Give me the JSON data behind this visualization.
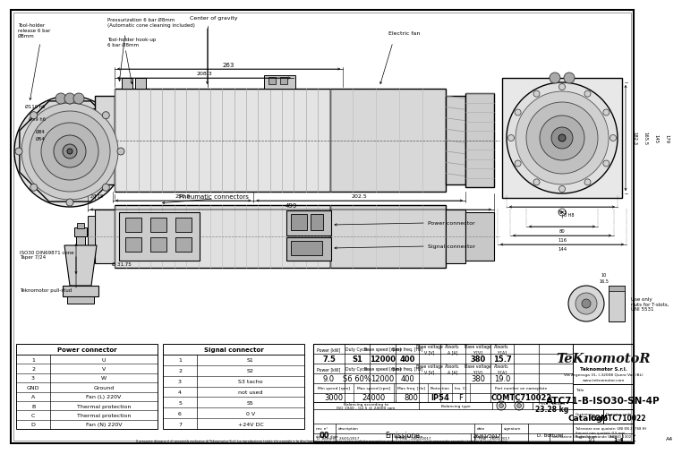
{
  "title": "ATC71-B-ISO30-SN-4P",
  "drawing_code": "COMTC710022",
  "customer": "Catalogo",
  "weight": "23.28 kg",
  "scale": "1:4",
  "sheet": "1/1",
  "date": "26/01/2017",
  "signature": "D. Botturel",
  "company": "Teknomotor S.r.l.",
  "company_addr": "Via Argensga 31, I-32008 Quero Vas (BL)",
  "company_web": "www.teknomotor.com",
  "tolerances": "Toleranze non quotate: UNI EN 22768 fH\nSmussi non quotati: 0.5 mm\nRugosita secondo UNI ISO 1302",
  "rev_no": "00",
  "description": "Emissione",
  "drawn": "D. Botturel - 26/01/2017",
  "approved": "S. Pedi - 26/01/2017",
  "checked": "S. Pedi - 26/01/2017",
  "power_connector": [
    [
      "1",
      "U"
    ],
    [
      "2",
      "V"
    ],
    [
      "3",
      "W"
    ],
    [
      "GND",
      "Ground"
    ],
    [
      "A",
      "Fan (L) 220V"
    ],
    [
      "B",
      "Thermal protection"
    ],
    [
      "C",
      "Thermal protection"
    ],
    [
      "D",
      "Fan (N) 220V"
    ]
  ],
  "signal_connector": [
    [
      "1",
      "S1"
    ],
    [
      "2",
      "S2"
    ],
    [
      "3",
      "S3 tacho"
    ],
    [
      "4",
      "not used"
    ],
    [
      "5",
      "S5"
    ],
    [
      "6",
      "0 V"
    ],
    [
      "7",
      "+24V DC"
    ]
  ],
  "bg": "#ffffff",
  "lc": "#000000",
  "gray1": "#c8c8c8",
  "gray2": "#b0b0b0",
  "gray3": "#e0e0e0",
  "gray4": "#888888"
}
